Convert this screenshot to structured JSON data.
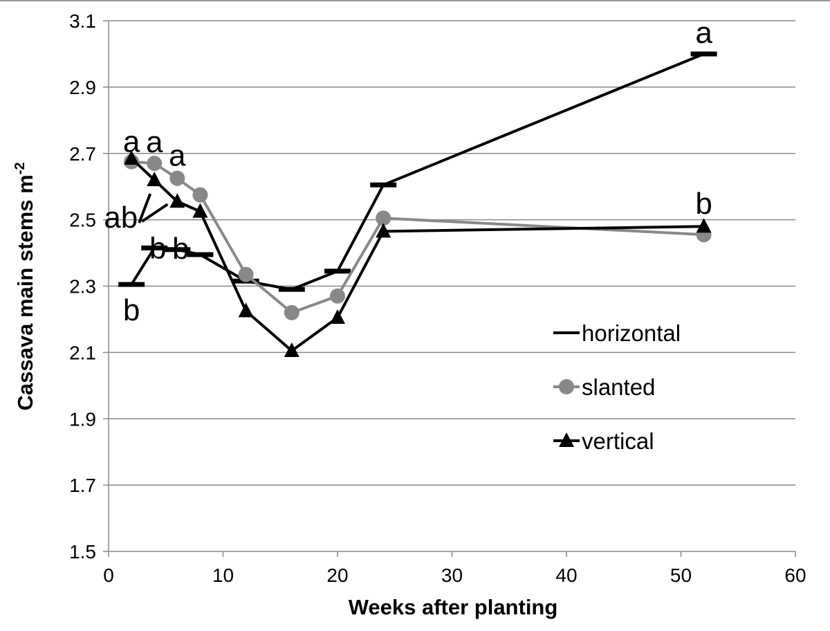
{
  "chart_data": {
    "type": "line",
    "title": "",
    "xlabel": "Weeks after planting",
    "ylabel": "Cassava main stems m",
    "ylabel_sup": "-2",
    "xlim": [
      0,
      60
    ],
    "ylim": [
      1.5,
      3.1
    ],
    "xticks": [
      "0",
      "10",
      "20",
      "30",
      "40",
      "50",
      "60"
    ],
    "yticks": [
      "1.5",
      "1.7",
      "1.9",
      "2.1",
      "2.3",
      "2.5",
      "2.7",
      "2.9",
      "3.1"
    ],
    "grid": "horizontal",
    "legend_position": "right-middle",
    "series": [
      {
        "name": "horizontal",
        "color": "#000000",
        "marker": "dash",
        "x": [
          2,
          4,
          6,
          8,
          12,
          16,
          20,
          24,
          52
        ],
        "y": [
          2.305,
          2.415,
          2.41,
          2.395,
          2.315,
          2.29,
          2.345,
          2.605,
          3.0
        ]
      },
      {
        "name": "slanted",
        "color": "#888888",
        "marker": "circle",
        "x": [
          2,
          4,
          6,
          8,
          12,
          16,
          20,
          24,
          52
        ],
        "y": [
          2.675,
          2.67,
          2.625,
          2.575,
          2.335,
          2.22,
          2.27,
          2.505,
          2.455
        ]
      },
      {
        "name": "vertical",
        "color": "#000000",
        "marker": "triangle",
        "x": [
          2,
          4,
          6,
          8,
          12,
          16,
          20,
          24,
          52
        ],
        "y": [
          2.685,
          2.62,
          2.555,
          2.525,
          2.225,
          2.105,
          2.205,
          2.465,
          2.48
        ]
      }
    ],
    "annotations": [
      {
        "text": "a",
        "x": 2,
        "y": 2.675
      },
      {
        "text": "a",
        "x": 4,
        "y": 2.67
      },
      {
        "text": "a",
        "x": 6,
        "y": 2.625
      },
      {
        "text": "ab",
        "x": 4,
        "y": 2.62
      },
      {
        "text": "b",
        "x": 2,
        "y": 2.305
      },
      {
        "text": "b",
        "x": 4,
        "y": 2.415
      },
      {
        "text": "b",
        "x": 6,
        "y": 2.41
      },
      {
        "text": "a",
        "x": 52,
        "y": 3.0
      },
      {
        "text": "b",
        "x": 52,
        "y": 2.48
      }
    ]
  }
}
